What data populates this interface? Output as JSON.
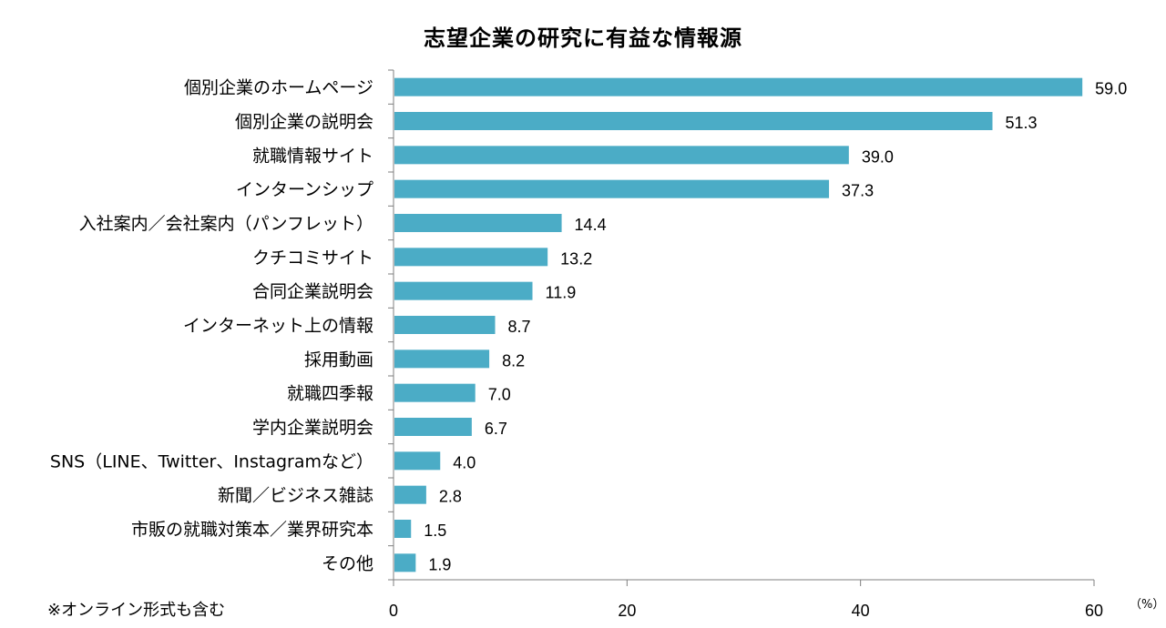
{
  "chart_data": {
    "type": "bar",
    "orientation": "horizontal",
    "title": "志望企業の研究に有益な情報源",
    "categories": [
      "個別企業のホームページ",
      "個別企業の説明会",
      "就職情報サイト",
      "インターンシップ",
      "入社案内／会社案内（パンフレット）",
      "クチコミサイト",
      "合同企業説明会",
      "インターネット上の情報",
      "採用動画",
      "就職四季報",
      "学内企業説明会",
      "SNS（LINE、Twitter、Instagramなど）",
      "新聞／ビジネス雑誌",
      "市販の就職対策本／業界研究本",
      "その他"
    ],
    "values": [
      59.0,
      51.3,
      39.0,
      37.3,
      14.4,
      13.2,
      11.9,
      8.7,
      8.2,
      7.0,
      6.7,
      4.0,
      2.8,
      1.5,
      1.9
    ],
    "value_labels": [
      "59.0",
      "51.3",
      "39.0",
      "37.3",
      "14.4",
      "13.2",
      "11.9",
      "8.7",
      "8.2",
      "7.0",
      "6.7",
      "4.0",
      "2.8",
      "1.5",
      "1.9"
    ],
    "xlim": [
      0,
      60
    ],
    "xticks": [
      0,
      20,
      40,
      60
    ],
    "xunit": "（%）",
    "xlabel": "",
    "ylabel": "",
    "grid": false,
    "legend": "none",
    "bar_color": "#4bacc6"
  },
  "footnote": "※オンライン形式も含む"
}
